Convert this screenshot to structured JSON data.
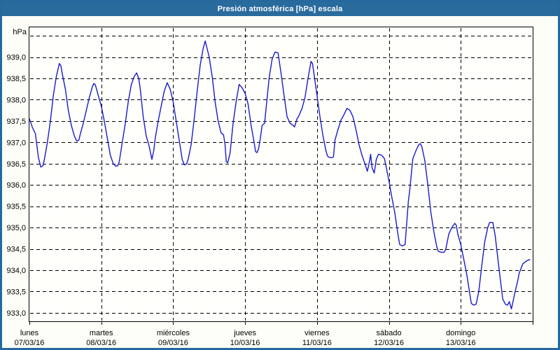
{
  "window": {
    "title": "Presión atmosférica [hPa] escala"
  },
  "colors": {
    "titlebar": "#2a6b9e",
    "titlebar_top_edge": "#1e5680",
    "border": "#26699e",
    "window_bg": "#fefef8",
    "plot_bg": "#fffffc",
    "plot_frame": "#000000",
    "grid": "#000000",
    "text": "#000000",
    "line": "#1a1acd"
  },
  "chart_data": {
    "type": "line",
    "title": "Presión atmosférica [hPa] escala",
    "ylabel": "hPa",
    "xlabel": "",
    "grid": true,
    "legend": "none",
    "ylim": [
      932.8,
      939.7
    ],
    "x_range_hours": [
      0,
      168
    ],
    "y_ticks": [
      {
        "value": 933.0,
        "label": "933,0"
      },
      {
        "value": 933.5,
        "label": "933,5"
      },
      {
        "value": 934.0,
        "label": "934,0"
      },
      {
        "value": 934.5,
        "label": "934,5"
      },
      {
        "value": 935.0,
        "label": "935,0"
      },
      {
        "value": 935.5,
        "label": "935,5"
      },
      {
        "value": 936.0,
        "label": "936,0"
      },
      {
        "value": 936.5,
        "label": "936,5"
      },
      {
        "value": 937.0,
        "label": "937,0"
      },
      {
        "value": 937.5,
        "label": "937,5"
      },
      {
        "value": 938.0,
        "label": "938,0"
      },
      {
        "value": 938.5,
        "label": "938,5"
      },
      {
        "value": 939.0,
        "label": "939,0"
      },
      {
        "value": 939.5,
        "label": ""
      }
    ],
    "x_days": [
      {
        "name": "lunes",
        "date": "07/03/16"
      },
      {
        "name": "martes",
        "date": "08/03/16"
      },
      {
        "name": "miércoles",
        "date": "09/03/16"
      },
      {
        "name": "jueves",
        "date": "10/03/16"
      },
      {
        "name": "viernes",
        "date": "11/03/16"
      },
      {
        "name": "sábado",
        "date": "12/03/16"
      },
      {
        "name": "domingo",
        "date": "13/03/16"
      }
    ],
    "series": [
      {
        "name": "Presión atmosférica",
        "points": [
          [
            0,
            937.55
          ],
          [
            1,
            937.35
          ],
          [
            2,
            937.2
          ],
          [
            3,
            936.65
          ],
          [
            3.8,
            936.42
          ],
          [
            4.5,
            936.45
          ],
          [
            5,
            936.6
          ],
          [
            6,
            937.0
          ],
          [
            7,
            937.5
          ],
          [
            8,
            938.1
          ],
          [
            9,
            938.55
          ],
          [
            10,
            938.85
          ],
          [
            10.5,
            938.8
          ],
          [
            11,
            938.6
          ],
          [
            12,
            938.25
          ],
          [
            13,
            937.75
          ],
          [
            14,
            937.4
          ],
          [
            15,
            937.15
          ],
          [
            15.8,
            937.03
          ],
          [
            16.5,
            937.05
          ],
          [
            17,
            937.2
          ],
          [
            18,
            937.45
          ],
          [
            19,
            937.75
          ],
          [
            20,
            938.05
          ],
          [
            21,
            938.3
          ],
          [
            21.5,
            938.38
          ],
          [
            22,
            938.35
          ],
          [
            23,
            938.1
          ],
          [
            24,
            937.85
          ],
          [
            25,
            937.5
          ],
          [
            26,
            937.1
          ],
          [
            27,
            936.7
          ],
          [
            28,
            936.5
          ],
          [
            28.8,
            936.44
          ],
          [
            29.5,
            936.45
          ],
          [
            30,
            936.55
          ],
          [
            31,
            937.0
          ],
          [
            32,
            937.45
          ],
          [
            33,
            937.95
          ],
          [
            34,
            938.35
          ],
          [
            35,
            938.55
          ],
          [
            35.8,
            938.63
          ],
          [
            36.5,
            938.5
          ],
          [
            37,
            938.25
          ],
          [
            38,
            937.6
          ],
          [
            39,
            937.15
          ],
          [
            40,
            936.9
          ],
          [
            40.9,
            936.6
          ],
          [
            41.5,
            936.8
          ],
          [
            42,
            937.1
          ],
          [
            43,
            937.5
          ],
          [
            44,
            937.85
          ],
          [
            45,
            938.2
          ],
          [
            46,
            938.4
          ],
          [
            47,
            938.25
          ],
          [
            48,
            937.95
          ],
          [
            49,
            937.5
          ],
          [
            50,
            937.05
          ],
          [
            51,
            936.6
          ],
          [
            51.7,
            936.47
          ],
          [
            52.5,
            936.5
          ],
          [
            53,
            936.6
          ],
          [
            54,
            936.95
          ],
          [
            55,
            937.55
          ],
          [
            56,
            938.2
          ],
          [
            57,
            938.8
          ],
          [
            58,
            939.2
          ],
          [
            58.7,
            939.38
          ],
          [
            59.5,
            939.15
          ],
          [
            60,
            939.0
          ],
          [
            61,
            938.55
          ],
          [
            62,
            937.95
          ],
          [
            63,
            937.5
          ],
          [
            64,
            937.22
          ],
          [
            64.8,
            937.18
          ],
          [
            65.3,
            936.95
          ],
          [
            65.7,
            936.55
          ],
          [
            66.2,
            936.52
          ],
          [
            67,
            936.75
          ],
          [
            68,
            937.45
          ],
          [
            69,
            937.95
          ],
          [
            70,
            938.36
          ],
          [
            71,
            938.28
          ],
          [
            72,
            938.15
          ],
          [
            73,
            937.9
          ],
          [
            74,
            937.4
          ],
          [
            75,
            937.0
          ],
          [
            75.5,
            936.78
          ],
          [
            76,
            936.76
          ],
          [
            76.5,
            936.85
          ],
          [
            77,
            937.05
          ],
          [
            77.7,
            937.4
          ],
          [
            78.5,
            937.45
          ],
          [
            80,
            938.5
          ],
          [
            81,
            938.95
          ],
          [
            82,
            939.12
          ],
          [
            83,
            939.1
          ],
          [
            84,
            938.62
          ],
          [
            85,
            938.1
          ],
          [
            86,
            937.6
          ],
          [
            87,
            937.45
          ],
          [
            88,
            937.4
          ],
          [
            88.5,
            937.36
          ],
          [
            89.3,
            937.55
          ],
          [
            90,
            937.63
          ],
          [
            91,
            937.8
          ],
          [
            92,
            938.05
          ],
          [
            93,
            938.5
          ],
          [
            94,
            938.9
          ],
          [
            94.5,
            938.85
          ],
          [
            95,
            938.6
          ],
          [
            96,
            938.1
          ],
          [
            97,
            937.6
          ],
          [
            98,
            937.15
          ],
          [
            99,
            936.8
          ],
          [
            99.5,
            936.68
          ],
          [
            100,
            936.65
          ],
          [
            101,
            936.64
          ],
          [
            101.5,
            936.66
          ],
          [
            102,
            937.05
          ],
          [
            103,
            937.3
          ],
          [
            104,
            937.52
          ],
          [
            105,
            937.65
          ],
          [
            106,
            937.8
          ],
          [
            107,
            937.75
          ],
          [
            108,
            937.6
          ],
          [
            109,
            937.3
          ],
          [
            110,
            936.95
          ],
          [
            111,
            936.7
          ],
          [
            112,
            936.5
          ],
          [
            112.8,
            936.32
          ],
          [
            113.5,
            936.55
          ],
          [
            113.9,
            936.72
          ],
          [
            114.4,
            936.4
          ],
          [
            115.1,
            936.28
          ],
          [
            115.8,
            936.6
          ],
          [
            116.5,
            936.72
          ],
          [
            117.5,
            936.7
          ],
          [
            118.5,
            936.62
          ],
          [
            119,
            936.45
          ],
          [
            120,
            936.1
          ],
          [
            121,
            935.7
          ],
          [
            122,
            935.34
          ],
          [
            123,
            934.85
          ],
          [
            123.6,
            934.6
          ],
          [
            124.5,
            934.57
          ],
          [
            125.4,
            934.6
          ],
          [
            126.5,
            935.62
          ],
          [
            127,
            935.9
          ],
          [
            128,
            936.62
          ],
          [
            129,
            936.8
          ],
          [
            130,
            936.95
          ],
          [
            130.5,
            936.97
          ],
          [
            131,
            936.9
          ],
          [
            132,
            936.57
          ],
          [
            133,
            936.0
          ],
          [
            134,
            935.36
          ],
          [
            135,
            934.9
          ],
          [
            136,
            934.55
          ],
          [
            136.5,
            934.44
          ],
          [
            137.5,
            934.42
          ],
          [
            138.5,
            934.42
          ],
          [
            139,
            934.5
          ],
          [
            140,
            934.85
          ],
          [
            141,
            935.0
          ],
          [
            142,
            935.1
          ],
          [
            142.5,
            935.05
          ],
          [
            143,
            934.85
          ],
          [
            144,
            934.6
          ],
          [
            145,
            934.25
          ],
          [
            146,
            933.9
          ],
          [
            147,
            933.45
          ],
          [
            147.5,
            933.22
          ],
          [
            148.3,
            933.18
          ],
          [
            149.1,
            933.2
          ],
          [
            150,
            933.5
          ],
          [
            151,
            934.1
          ],
          [
            152,
            934.67
          ],
          [
            153,
            935.0
          ],
          [
            153.6,
            935.12
          ],
          [
            154.7,
            935.12
          ],
          [
            155.5,
            934.8
          ],
          [
            156,
            934.5
          ],
          [
            157,
            933.9
          ],
          [
            158,
            933.32
          ],
          [
            158.9,
            933.2
          ],
          [
            159.6,
            933.18
          ],
          [
            160.2,
            933.26
          ],
          [
            160.9,
            933.09
          ],
          [
            162,
            933.45
          ],
          [
            163,
            933.75
          ],
          [
            163.5,
            933.93
          ],
          [
            164.7,
            934.15
          ],
          [
            166,
            934.22
          ],
          [
            167,
            934.25
          ]
        ]
      }
    ]
  }
}
